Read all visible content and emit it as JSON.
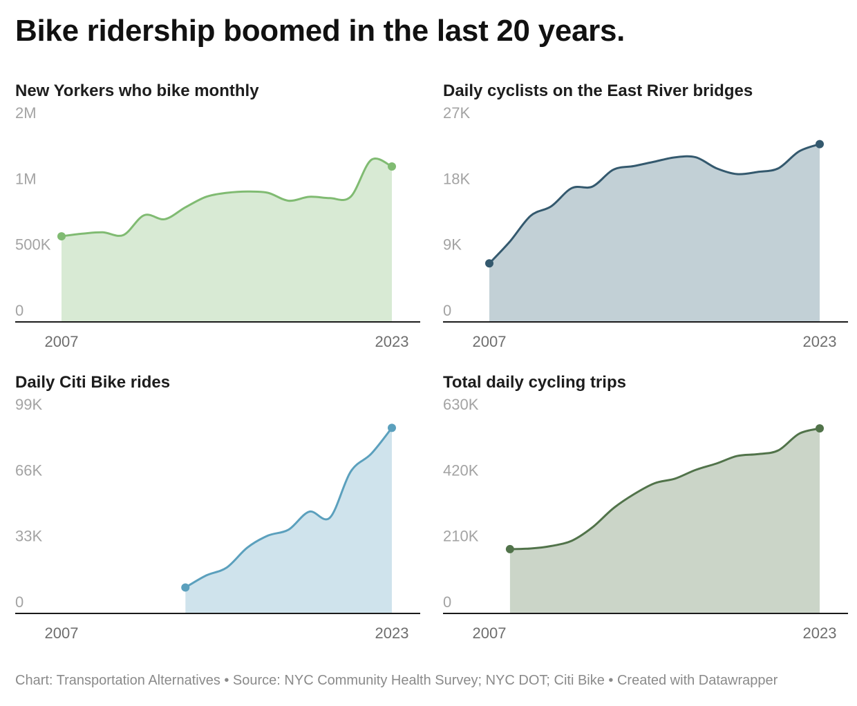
{
  "title": "Bike ridership boomed in the last 20 years.",
  "footer": "Chart: Transportation Alternatives • Source: NYC Community Health Survey; NYC DOT; Citi Bike • Created with Datawrapper",
  "chart_data": [
    {
      "type": "area",
      "title": "New Yorkers who bike monthly",
      "x": [
        2007,
        2008,
        2009,
        2010,
        2011,
        2012,
        2013,
        2014,
        2015,
        2016,
        2017,
        2018,
        2019,
        2020,
        2021,
        2022,
        2023
      ],
      "values": [
        650000,
        670000,
        680000,
        660000,
        810000,
        780000,
        870000,
        950000,
        980000,
        990000,
        980000,
        920000,
        950000,
        940000,
        950000,
        1230000,
        1180000
      ],
      "y_ticks": [
        "0",
        "500K",
        "1M",
        "2M"
      ],
      "y_tick_values": [
        0,
        500000,
        1000000,
        1500000
      ],
      "x_tick_labels": [
        "2007",
        "2023"
      ],
      "xlim": [
        2007,
        2023
      ],
      "ylim": [
        0,
        1500000
      ],
      "color": "#80bb72",
      "fill": "#d8ead4"
    },
    {
      "type": "area",
      "title": "Daily cyclists on the East River bridges",
      "x": [
        2007,
        2008,
        2009,
        2010,
        2011,
        2012,
        2013,
        2014,
        2015,
        2016,
        2017,
        2018,
        2019,
        2020,
        2021,
        2022,
        2023
      ],
      "values": [
        8000,
        11000,
        14500,
        15800,
        18300,
        18500,
        20800,
        21300,
        21900,
        22500,
        22500,
        21000,
        20200,
        20500,
        21000,
        23300,
        24300
      ],
      "y_ticks": [
        "0",
        "9K",
        "18K",
        "27K"
      ],
      "y_tick_values": [
        0,
        9000,
        18000,
        27000
      ],
      "x_tick_labels": [
        "2007",
        "2023"
      ],
      "xlim": [
        2007,
        2023
      ],
      "ylim": [
        0,
        27000
      ],
      "color": "#34596e",
      "fill": "#c2d0d6"
    },
    {
      "type": "area",
      "title": "Daily Citi Bike rides",
      "x": [
        2013,
        2014,
        2015,
        2016,
        2017,
        2018,
        2019,
        2020,
        2021,
        2022,
        2023
      ],
      "values": [
        13000,
        19000,
        23000,
        33000,
        39000,
        42000,
        51000,
        48000,
        71000,
        80000,
        93000
      ],
      "y_ticks": [
        "0",
        "33K",
        "66K",
        "99K"
      ],
      "y_tick_values": [
        0,
        33000,
        66000,
        99000
      ],
      "x_tick_labels": [
        "2007",
        "2023"
      ],
      "xlim": [
        2007,
        2023
      ],
      "ylim": [
        0,
        99000
      ],
      "color": "#5ba0bd",
      "fill": "#cfe3ec"
    },
    {
      "type": "area",
      "title": "Total daily cycling trips",
      "x": [
        2008,
        2009,
        2010,
        2011,
        2012,
        2013,
        2014,
        2015,
        2016,
        2017,
        2018,
        2019,
        2020,
        2021,
        2022,
        2023
      ],
      "values": [
        205000,
        207000,
        215000,
        232000,
        275000,
        335000,
        380000,
        415000,
        430000,
        458000,
        478000,
        502000,
        508000,
        520000,
        573000,
        590000
      ],
      "y_ticks": [
        "0",
        "210K",
        "420K",
        "630K"
      ],
      "y_tick_values": [
        0,
        210000,
        420000,
        630000
      ],
      "x_tick_labels": [
        "2007",
        "2023"
      ],
      "xlim": [
        2007,
        2023
      ],
      "ylim": [
        0,
        630000
      ],
      "color": "#51734a",
      "fill": "#cbd5c8"
    }
  ]
}
